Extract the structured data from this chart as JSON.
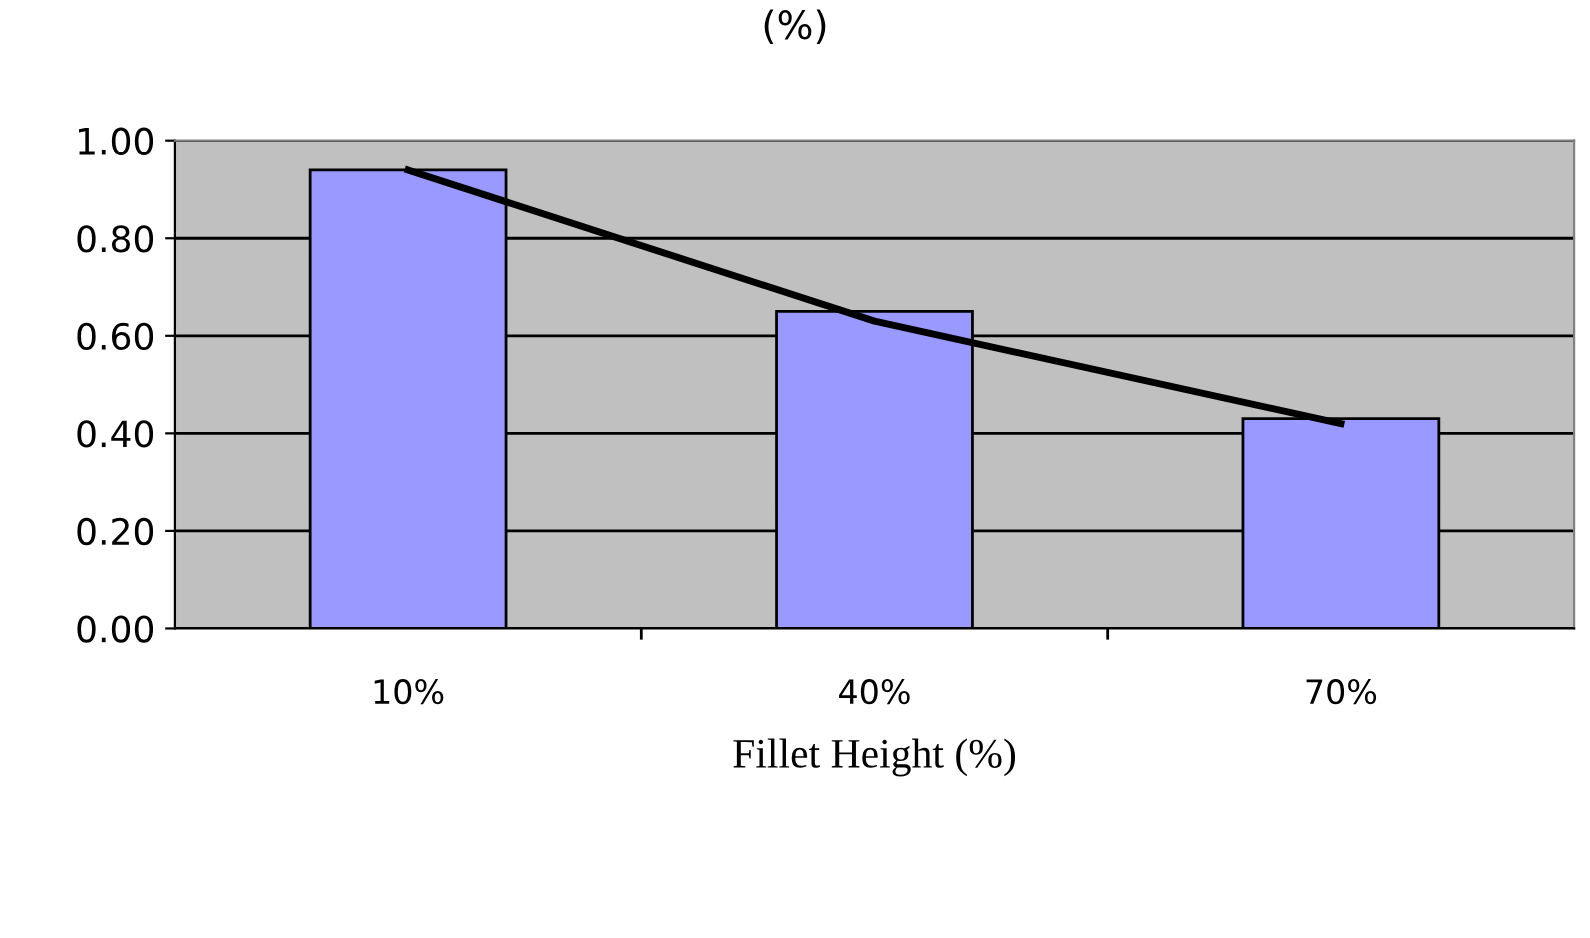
{
  "chart_data": {
    "type": "bar",
    "title": "(%)",
    "xlabel": "Fillet Height (%)",
    "categories": [
      "10%",
      "40%",
      "70%"
    ],
    "series": [
      {
        "color": "#9999ff",
        "values": [
          0.94,
          0.65,
          0.43
        ]
      },
      {
        "type": "line",
        "color": "#000000",
        "x": [
          "10%",
          "40%",
          "70%"
        ],
        "values": [
          0.94,
          0.63,
          0.42
        ]
      }
    ],
    "ylim": [
      0,
      1
    ],
    "yticks": [
      {
        "value": 0,
        "label": "0.00"
      },
      {
        "value": 0.2,
        "label": "0.20"
      },
      {
        "value": 0.4,
        "label": "0.40"
      },
      {
        "value": 0.6,
        "label": "0.60"
      },
      {
        "value": 0.8,
        "label": "0.80"
      },
      {
        "value": 1,
        "label": "1.00"
      }
    ],
    "grid": "y",
    "legend": false
  }
}
